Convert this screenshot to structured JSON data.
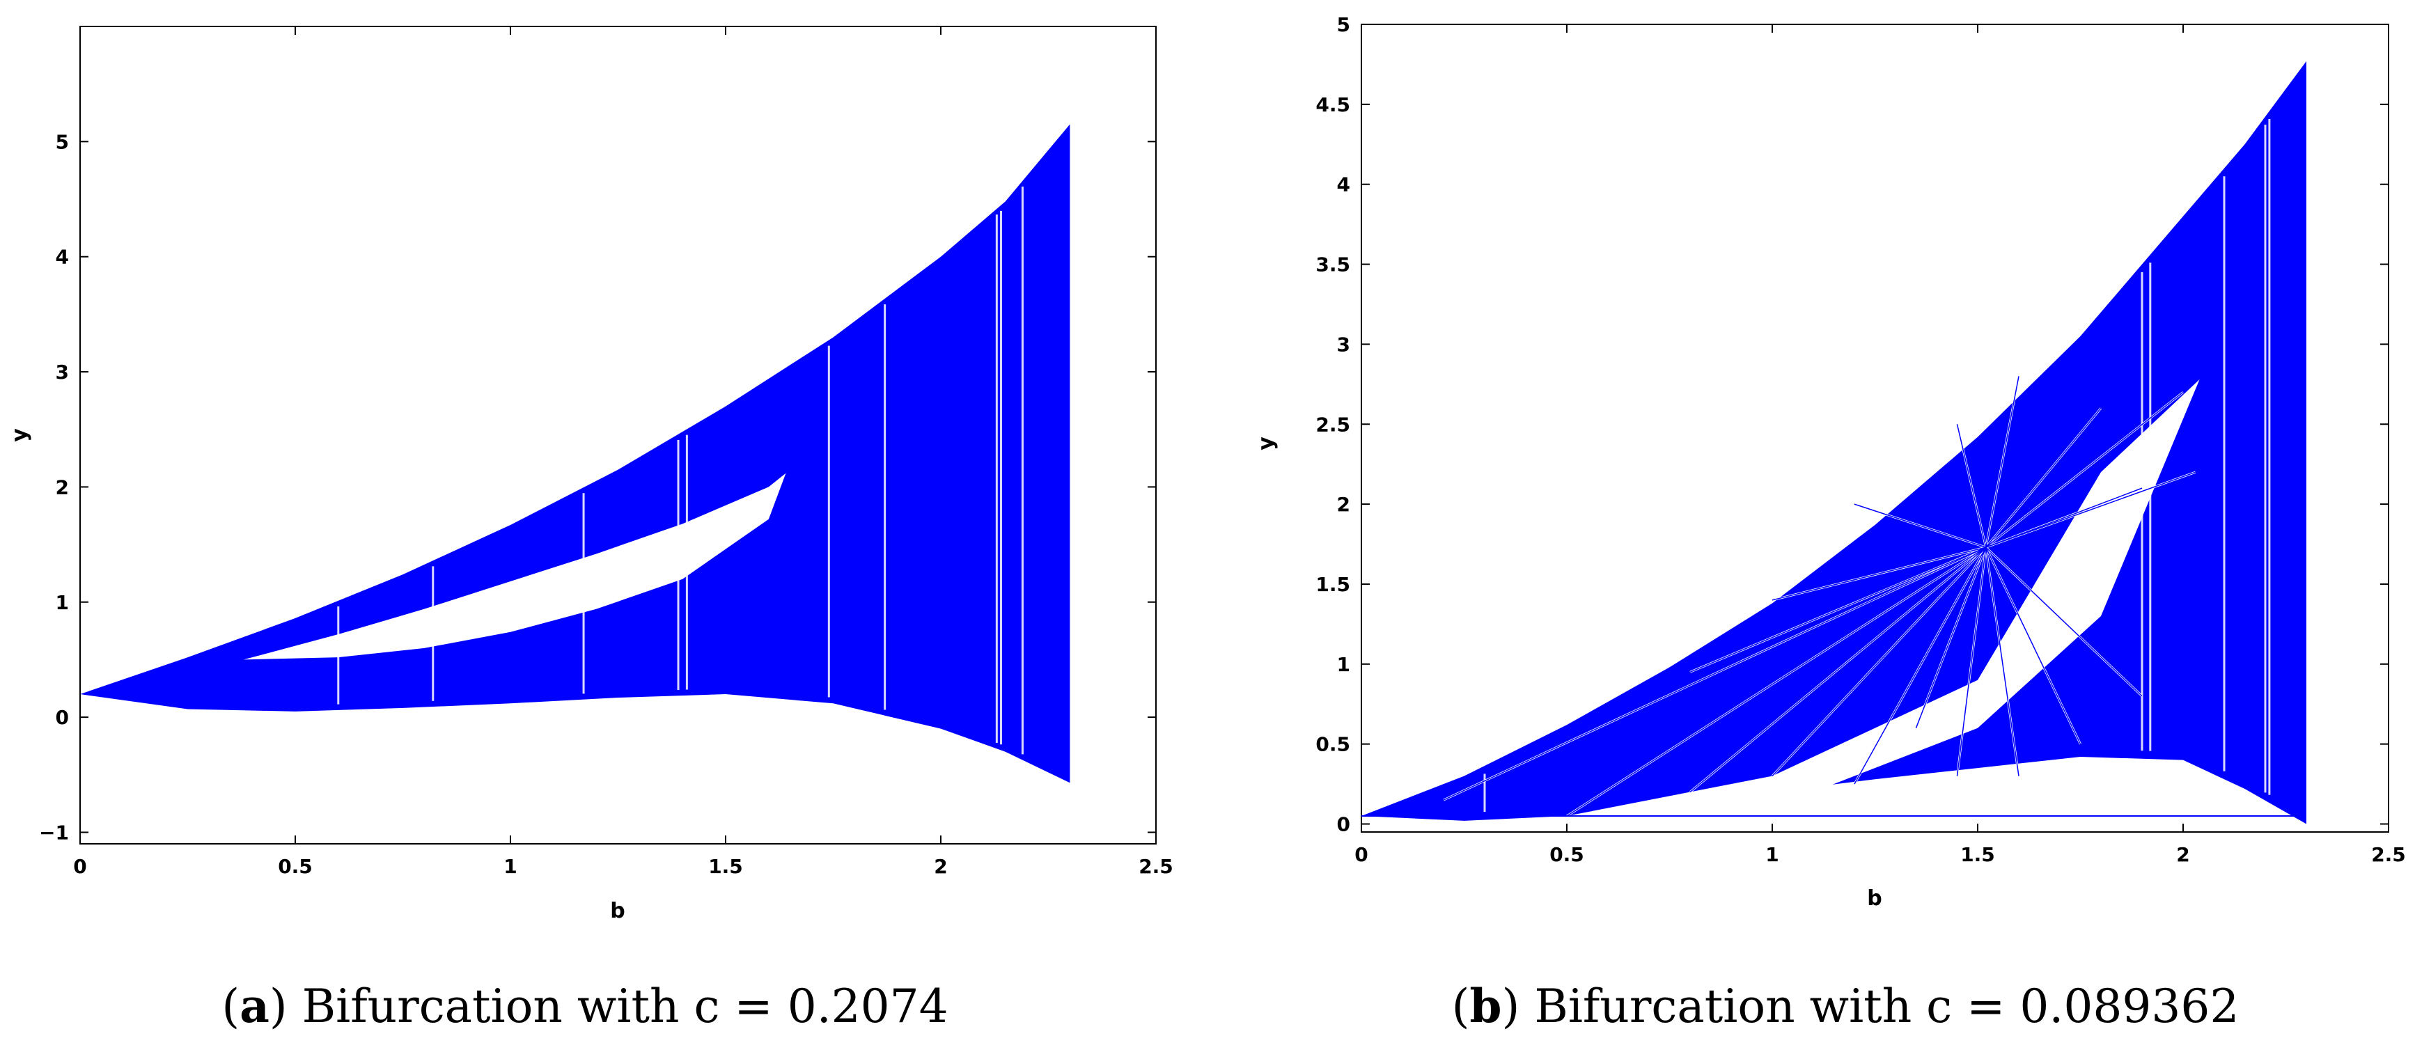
{
  "figure": {
    "panels": [
      {
        "caption": {
          "letter": "a",
          "text": "Bifurcation with c = 0.2074"
        },
        "chart": {
          "type": "scatter",
          "xlabel": "b",
          "ylabel": "y",
          "xlim": [
            0,
            2.5
          ],
          "ylim": [
            -1.1,
            6
          ],
          "xticks": [
            0,
            0.5,
            1,
            1.5,
            2,
            2.5
          ],
          "xtick_labels": [
            "0",
            "0.5",
            "1",
            "1.5",
            "2",
            "2.5"
          ],
          "yticks": [
            -1,
            0,
            1,
            2,
            3,
            4,
            5
          ],
          "ytick_labels": [
            "−1",
            "0",
            "1",
            "2",
            "3",
            "4",
            "5"
          ],
          "grid": false,
          "legend": "none",
          "color": "#0000ff",
          "envelope": {
            "b": [
              0,
              0.25,
              0.5,
              0.75,
              1.0,
              1.25,
              1.5,
              1.75,
              2.0,
              2.15,
              2.3
            ],
            "upper": [
              0.2,
              0.52,
              0.86,
              1.24,
              1.67,
              2.15,
              2.7,
              3.3,
              4.0,
              4.48,
              5.15
            ],
            "lower": [
              0.2,
              0.07,
              0.05,
              0.08,
              0.12,
              0.17,
              0.2,
              0.12,
              -0.1,
              -0.3,
              -0.57
            ]
          },
          "periodic_window": {
            "b": [
              0.38,
              0.6,
              0.8,
              1.0,
              1.2,
              1.4,
              1.6,
              1.64
            ],
            "upper": [
              0.5,
              0.72,
              0.94,
              1.18,
              1.42,
              1.68,
              2.0,
              2.12
            ],
            "lower": [
              0.5,
              0.52,
              0.6,
              0.74,
              0.94,
              1.2,
              1.72,
              2.12
            ]
          }
        }
      },
      {
        "caption": {
          "letter": "b",
          "text": "Bifurcation with c = 0.089362"
        },
        "chart": {
          "type": "scatter",
          "xlabel": "b",
          "ylabel": "y",
          "xlim": [
            0,
            2.5
          ],
          "ylim": [
            -0.05,
            5
          ],
          "xticks": [
            0,
            0.5,
            1,
            1.5,
            2,
            2.5
          ],
          "xtick_labels": [
            "0",
            "0.5",
            "1",
            "1.5",
            "2",
            "2.5"
          ],
          "yticks": [
            0,
            0.5,
            1,
            1.5,
            2,
            2.5,
            3,
            3.5,
            4,
            4.5,
            5
          ],
          "ytick_labels": [
            "0",
            "0.5",
            "1",
            "1.5",
            "2",
            "2.5",
            "3",
            "3.5",
            "4",
            "4.5",
            "5"
          ],
          "grid": false,
          "legend": "none",
          "color": "#0000ff",
          "envelope": {
            "b": [
              0,
              0.25,
              0.5,
              0.75,
              1.0,
              1.25,
              1.5,
              1.75,
              2.0,
              2.15,
              2.3
            ],
            "upper": [
              0.05,
              0.3,
              0.62,
              0.98,
              1.38,
              1.87,
              2.42,
              3.05,
              3.8,
              4.25,
              4.77
            ],
            "lower": [
              0.05,
              0.02,
              0.05,
              0.12,
              0.2,
              0.28,
              0.35,
              0.42,
              0.4,
              0.22,
              0.0
            ]
          },
          "periodic_window": {
            "b": [
              0.5,
              1.0,
              1.5,
              1.8,
              2.04
            ],
            "upper": [
              0.05,
              0.3,
              0.9,
              2.2,
              2.78
            ],
            "lower": [
              0.05,
              0.1,
              0.6,
              1.3,
              2.78
            ]
          },
          "focal_point": {
            "b": 1.52,
            "y": 1.73
          }
        }
      }
    ]
  }
}
